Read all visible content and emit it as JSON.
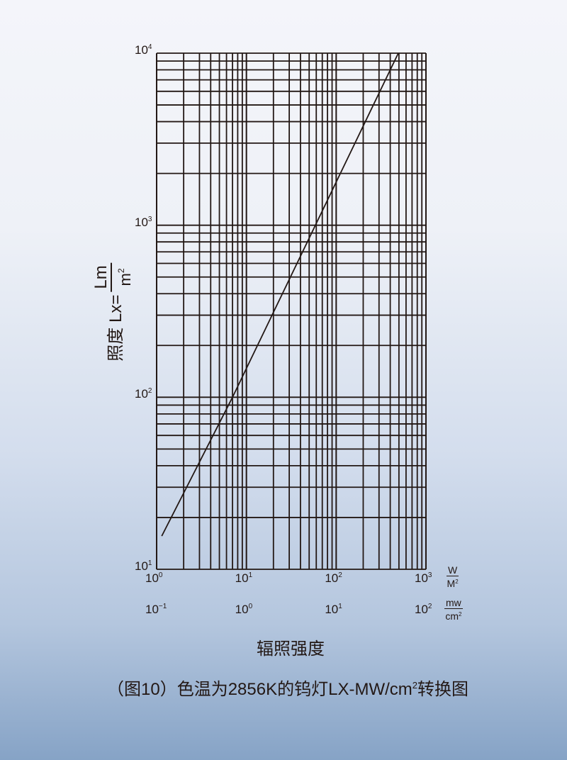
{
  "chart_data": {
    "type": "line",
    "x_scale": "log",
    "y_scale": "log",
    "xlim": [
      1,
      1000
    ],
    "ylim": [
      10,
      10000
    ],
    "grid": true,
    "series": [
      {
        "x": [
          1.14,
          7.0,
          492
        ],
        "y": [
          15.6,
          100,
          10000
        ]
      }
    ],
    "y_ticks": [
      {
        "base": "10",
        "exp": "1"
      },
      {
        "base": "10",
        "exp": "2"
      },
      {
        "base": "10",
        "exp": "3"
      },
      {
        "base": "10",
        "exp": "4"
      }
    ],
    "x_ticks_primary": [
      {
        "base": "10",
        "exp": "0"
      },
      {
        "base": "10",
        "exp": "1"
      },
      {
        "base": "10",
        "exp": "2"
      },
      {
        "base": "10",
        "exp": "3"
      }
    ],
    "x_ticks_secondary": [
      {
        "base": "10",
        "exp": "−1"
      },
      {
        "base": "10",
        "exp": "0"
      },
      {
        "base": "10",
        "exp": "1"
      },
      {
        "base": "10",
        "exp": "2"
      }
    ],
    "x_unit_primary": {
      "num": "W",
      "den": "M",
      "den_exp": "2"
    },
    "x_unit_secondary": {
      "num": "mw",
      "den": "cm",
      "den_exp": "2"
    },
    "ylabel": {
      "text": "照度 Lx=",
      "num": "Lm",
      "den": "m",
      "den_exp": "2"
    },
    "xlabel": "辐照强度",
    "caption": {
      "pre": "（图10）色温为2856K的钨灯LX-MW/cm",
      "exp": "2",
      "post": "转换图"
    },
    "line_color": "#231815"
  }
}
